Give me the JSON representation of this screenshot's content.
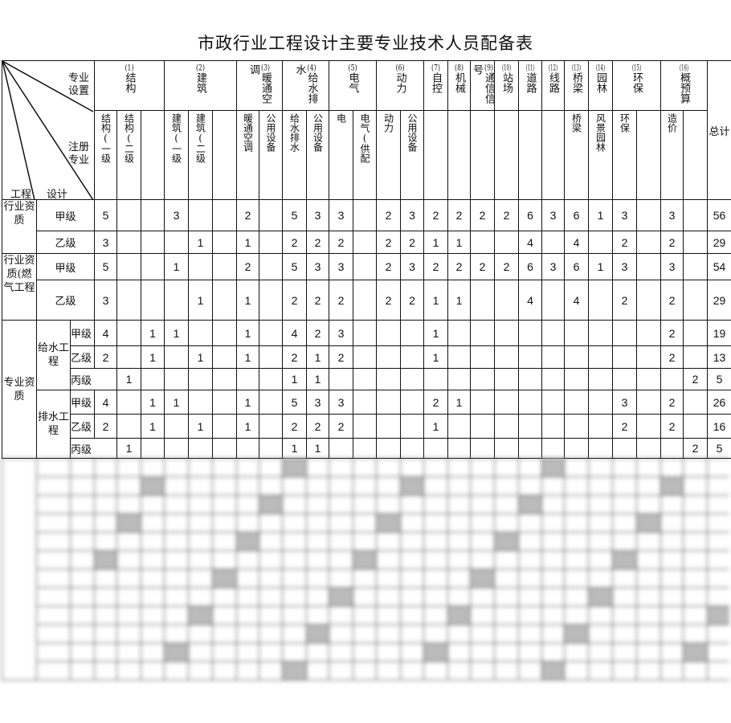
{
  "title": "市政行业工程设计主要专业技术人员配备表",
  "corner": {
    "top": "专业设置",
    "middle": "注册专业",
    "bottom_left": "工程",
    "bottom_mid": "设计"
  },
  "groups": [
    {
      "num": "(1)",
      "name": "结构",
      "span": 3
    },
    {
      "num": "(2)",
      "name": "建筑",
      "span": 3
    },
    {
      "num": "(3)",
      "name": "暖通空调",
      "span": 2
    },
    {
      "num": "(4)",
      "name": "给水排水",
      "span": 2
    },
    {
      "num": "(5)",
      "name": "电气",
      "span": 2
    },
    {
      "num": "(6)",
      "name": "动力",
      "span": 2
    },
    {
      "num": "(7)",
      "name": "自控",
      "span": 1
    },
    {
      "num": "(8)",
      "name": "机械",
      "span": 1
    },
    {
      "num": "(9)",
      "name": "通信信号",
      "span": 1
    },
    {
      "num": "(10)",
      "name": "站场",
      "span": 1
    },
    {
      "num": "(11)",
      "name": "道路",
      "span": 1
    },
    {
      "num": "(12)",
      "name": "线路",
      "span": 1
    },
    {
      "num": "(13)",
      "name": "桥梁",
      "span": 1
    },
    {
      "num": "(14)",
      "name": "园林",
      "span": 1
    },
    {
      "num": "(15)",
      "name": "环保",
      "span": 2
    },
    {
      "num": "(16)",
      "name": "概预算",
      "span": 2
    }
  ],
  "total_label": "总计",
  "subheaders": [
    "结构(一级",
    "结构(二级",
    "",
    "建筑(一级",
    "建筑(二级",
    "",
    "暖通空调",
    "公用设备",
    "给水排水",
    "公用设备",
    "电",
    "电气(供配",
    "动力",
    "公用设备",
    "",
    "",
    "",
    "",
    "",
    "",
    "桥梁",
    "风景园林",
    "环保",
    "",
    "造价",
    ""
  ],
  "rows": [
    {
      "group": "行业资质",
      "group_rows": 2,
      "grade": "甲级",
      "values": [
        "5",
        "",
        "",
        "3",
        "",
        "",
        "2",
        "",
        "5",
        "3",
        "3",
        "",
        "2",
        "3",
        "2",
        "2",
        "2",
        "2",
        "6",
        "3",
        "6",
        "1",
        "3",
        "",
        "3",
        ""
      ],
      "total": "56"
    },
    {
      "grade": "乙级",
      "values": [
        "3",
        "",
        "",
        "",
        "1",
        "",
        "1",
        "",
        "2",
        "2",
        "2",
        "",
        "2",
        "2",
        "1",
        "1",
        "",
        "",
        "4",
        "",
        "4",
        "",
        "2",
        "",
        "2",
        ""
      ],
      "total": "29"
    },
    {
      "group": "行业资质(燃气工程",
      "group_rows": 2,
      "grade": "甲级",
      "values": [
        "5",
        "",
        "",
        "1",
        "",
        "",
        "2",
        "",
        "5",
        "3",
        "3",
        "",
        "2",
        "3",
        "2",
        "2",
        "2",
        "2",
        "6",
        "3",
        "6",
        "1",
        "3",
        "",
        "3",
        ""
      ],
      "total": "54"
    },
    {
      "grade": "乙级",
      "values": [
        "3",
        "",
        "",
        "",
        "1",
        "",
        "1",
        "",
        "2",
        "2",
        "2",
        "",
        "2",
        "2",
        "1",
        "1",
        "",
        "",
        "4",
        "",
        "4",
        "",
        "2",
        "",
        "2",
        ""
      ],
      "total": "29"
    },
    {
      "group": "专业资质",
      "group_rows": 6,
      "sub": "给水工程",
      "sub_rows": 3,
      "grade": "甲级",
      "values": [
        "4",
        "",
        "1",
        "1",
        "",
        "",
        "1",
        "",
        "4",
        "2",
        "3",
        "",
        "",
        "",
        "1",
        "",
        "",
        "",
        "",
        "",
        "",
        "",
        "",
        "",
        "2",
        ""
      ],
      "total": "19"
    },
    {
      "grade": "乙级",
      "values": [
        "2",
        "",
        "1",
        "",
        "1",
        "",
        "1",
        "",
        "2",
        "1",
        "2",
        "",
        "",
        "",
        "1",
        "",
        "",
        "",
        "",
        "",
        "",
        "",
        "",
        "",
        "2",
        ""
      ],
      "total": "13"
    },
    {
      "grade": "丙级",
      "grade_wide": true,
      "values": [
        "",
        "1",
        "",
        "",
        "",
        "",
        "",
        "",
        "1",
        "1",
        "",
        "",
        "",
        "",
        "",
        "",
        "",
        "",
        "",
        "",
        "",
        "",
        "",
        "",
        "",
        "2"
      ],
      "total": "5"
    },
    {
      "sub": "排水工程",
      "sub_rows": 3,
      "grade": "甲级",
      "values": [
        "4",
        "",
        "1",
        "1",
        "",
        "",
        "1",
        "",
        "5",
        "3",
        "3",
        "",
        "",
        "",
        "2",
        "1",
        "",
        "",
        "",
        "",
        "",
        "",
        "3",
        "",
        "2",
        ""
      ],
      "total": "26"
    },
    {
      "grade": "乙级",
      "values": [
        "2",
        "",
        "1",
        "",
        "1",
        "",
        "1",
        "",
        "2",
        "2",
        "2",
        "",
        "",
        "",
        "1",
        "",
        "",
        "",
        "",
        "",
        "",
        "",
        "2",
        "",
        "2",
        ""
      ],
      "total": "16"
    },
    {
      "grade": "丙级",
      "grade_wide": true,
      "values": [
        "",
        "1",
        "",
        "",
        "",
        "",
        "",
        "",
        "1",
        "1",
        "",
        "",
        "",
        "",
        "",
        "",
        "",
        "",
        "",
        "",
        "",
        "",
        "",
        "",
        "",
        "2"
      ],
      "total": "5"
    }
  ]
}
